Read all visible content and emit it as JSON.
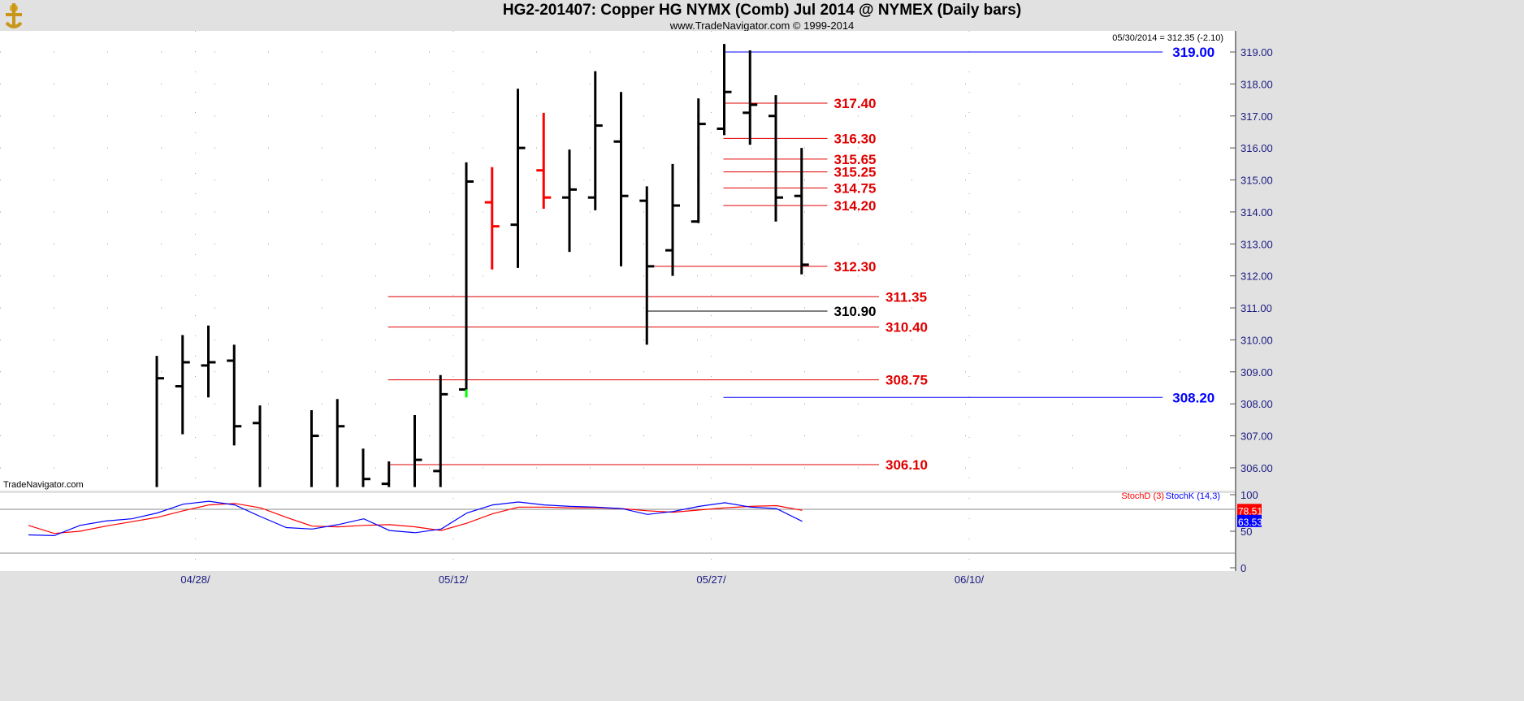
{
  "header": {
    "title": "HG2-201407:  Copper HG NYMX (Comb) Jul 2014 @ NYMEX  (Daily bars)",
    "subtitle": "www.TradeNavigator.com © 1999-2014",
    "last_readout": "05/30/2014 = 312.35 (-2.10)",
    "watermark": "TradeNavigator.com"
  },
  "colors": {
    "up_bar": "#000000",
    "down_bar": "#ff0000",
    "support_resistance": "#ff0000",
    "major_level": "#0000ff",
    "stoch_d": "#ff0000",
    "stoch_k": "#0000ff",
    "axis_text": "#1a1a80"
  },
  "chart_data": [
    {
      "type": "ohlc",
      "ylim": [
        305.4,
        319.4
      ],
      "yticks": [
        "306.00",
        "307.00",
        "308.00",
        "309.00",
        "310.00",
        "311.00",
        "312.00",
        "313.00",
        "314.00",
        "315.00",
        "316.00",
        "317.00",
        "318.00",
        "319.00"
      ],
      "xtick_labels": [
        {
          "date": "04/28/14",
          "bar": 2
        },
        {
          "date": "05/12/14",
          "bar": 12
        },
        {
          "date": "05/27/14",
          "bar": 22
        },
        {
          "date": "06/10/14",
          "bar": 32
        }
      ],
      "bars": [
        {
          "o": 305.4,
          "h": 309.5,
          "l": 305.4,
          "c": 308.8,
          "color": "black"
        },
        {
          "o": 308.55,
          "h": 310.15,
          "l": 307.05,
          "c": 309.3,
          "color": "black"
        },
        {
          "o": 309.2,
          "h": 310.45,
          "l": 308.2,
          "c": 309.3,
          "color": "black"
        },
        {
          "o": 309.35,
          "h": 309.85,
          "l": 306.7,
          "c": 307.3,
          "color": "black"
        },
        {
          "o": 307.4,
          "h": 307.95,
          "l": 305.4,
          "c": 305.4,
          "color": "black"
        },
        {
          "o": 305.4,
          "h": 305.4,
          "l": 305.4,
          "c": 305.4,
          "color": "black"
        },
        {
          "o": 305.4,
          "h": 307.8,
          "l": 305.4,
          "c": 307.0,
          "color": "black"
        },
        {
          "o": 305.4,
          "h": 308.15,
          "l": 305.4,
          "c": 307.3,
          "color": "black"
        },
        {
          "o": 305.4,
          "h": 306.6,
          "l": 305.4,
          "c": 305.65,
          "color": "black"
        },
        {
          "o": 305.5,
          "h": 306.2,
          "l": 305.4,
          "c": 305.4,
          "color": "black"
        },
        {
          "o": 305.4,
          "h": 307.65,
          "l": 305.4,
          "c": 306.25,
          "color": "black"
        },
        {
          "o": 305.9,
          "h": 308.9,
          "l": 305.4,
          "c": 308.3,
          "color": "black"
        },
        {
          "o": 308.45,
          "h": 315.55,
          "l": 308.3,
          "c": 314.95,
          "color": "black"
        },
        {
          "o": 314.3,
          "h": 315.4,
          "l": 312.2,
          "c": 313.55,
          "color": "red"
        },
        {
          "o": 313.6,
          "h": 317.85,
          "l": 312.25,
          "c": 316.0,
          "color": "black"
        },
        {
          "o": 315.3,
          "h": 317.1,
          "l": 314.1,
          "c": 314.45,
          "color": "red"
        },
        {
          "o": 314.45,
          "h": 315.95,
          "l": 312.75,
          "c": 314.7,
          "color": "black"
        },
        {
          "o": 314.45,
          "h": 318.4,
          "l": 314.05,
          "c": 316.7,
          "color": "black"
        },
        {
          "o": 316.2,
          "h": 317.75,
          "l": 312.3,
          "c": 314.5,
          "color": "black"
        },
        {
          "o": 314.35,
          "h": 314.8,
          "l": 309.85,
          "c": 312.3,
          "color": "black"
        },
        {
          "o": 312.8,
          "h": 315.5,
          "l": 312.0,
          "c": 314.2,
          "color": "black"
        },
        {
          "o": 313.7,
          "h": 317.55,
          "l": 313.65,
          "c": 316.75,
          "color": "black"
        },
        {
          "o": 316.6,
          "h": 319.25,
          "l": 316.4,
          "c": 317.75,
          "color": "black"
        },
        {
          "o": 317.1,
          "h": 319.05,
          "l": 316.1,
          "c": 317.35,
          "color": "black"
        },
        {
          "o": 317.0,
          "h": 317.65,
          "l": 313.7,
          "c": 314.45,
          "color": "black"
        },
        {
          "o": 314.5,
          "h": 316.0,
          "l": 312.05,
          "c": 312.35,
          "color": "black"
        }
      ],
      "levels": [
        {
          "value": 319.0,
          "label": "319.00",
          "color": "blue",
          "from_bar": 22,
          "to_bar": 39
        },
        {
          "value": 317.4,
          "label": "317.40",
          "color": "red",
          "from_bar": 22,
          "to_bar": 26
        },
        {
          "value": 316.3,
          "label": "316.30",
          "color": "red",
          "from_bar": 22,
          "to_bar": 26
        },
        {
          "value": 315.65,
          "label": "315.65",
          "color": "red",
          "from_bar": 22,
          "to_bar": 26
        },
        {
          "value": 315.25,
          "label": "315.25",
          "color": "red",
          "from_bar": 22,
          "to_bar": 26
        },
        {
          "value": 314.75,
          "label": "314.75",
          "color": "red",
          "from_bar": 22,
          "to_bar": 26
        },
        {
          "value": 314.2,
          "label": "314.20",
          "color": "red",
          "from_bar": 22,
          "to_bar": 26
        },
        {
          "value": 312.3,
          "label": "312.30",
          "color": "red",
          "from_bar": 19,
          "to_bar": 26
        },
        {
          "value": 311.35,
          "label": "311.35",
          "color": "red",
          "from_bar": 9,
          "to_bar": 28
        },
        {
          "value": 310.9,
          "label": "310.90",
          "color": "black",
          "from_bar": 19,
          "to_bar": 26
        },
        {
          "value": 310.4,
          "label": "310.40",
          "color": "red",
          "from_bar": 9,
          "to_bar": 28
        },
        {
          "value": 308.75,
          "label": "308.75",
          "color": "red",
          "from_bar": 9,
          "to_bar": 28
        },
        {
          "value": 308.2,
          "label": "308.20",
          "color": "blue",
          "from_bar": 22,
          "to_bar": 39
        },
        {
          "value": 306.1,
          "label": "306.10",
          "color": "red",
          "from_bar": 9,
          "to_bar": 28
        }
      ]
    },
    {
      "type": "line",
      "ylim": [
        0,
        100
      ],
      "yticks": [
        "0",
        "50",
        "100"
      ],
      "reference_lines": [
        20,
        80
      ],
      "series": [
        {
          "name": "StochD (3)",
          "color": "red",
          "last_value": "78.51",
          "values": [
            58,
            47,
            50,
            57,
            63,
            69,
            78,
            86,
            88,
            82,
            69,
            57,
            56,
            58,
            59,
            56,
            51,
            61,
            74,
            83,
            83,
            82,
            82,
            81,
            78,
            76,
            79,
            82,
            84,
            85,
            78.51
          ]
        },
        {
          "name": "StochK (14,3)",
          "color": "blue",
          "last_value": "63.53",
          "values": [
            45,
            44,
            58,
            64,
            67,
            75,
            87,
            91,
            86,
            70,
            55,
            53,
            59,
            67,
            51,
            48,
            53,
            75,
            86,
            90,
            86,
            84,
            83,
            81,
            73,
            77,
            84,
            89,
            83,
            81,
            63.53
          ]
        }
      ]
    }
  ]
}
